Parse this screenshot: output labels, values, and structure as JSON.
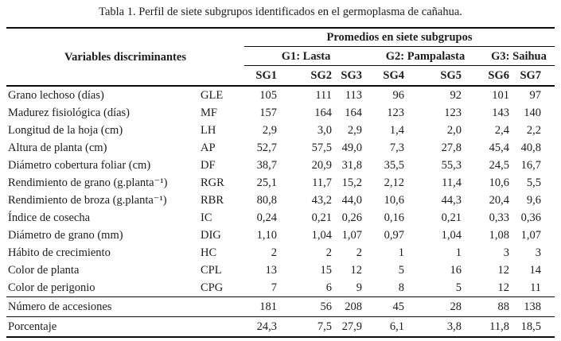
{
  "title": "Tabla 1. Perfil de siete subgrupos identificados en el germoplasma de cañahua.",
  "table": {
    "corner_header": "Variables discriminantes",
    "span_header": "Promedios en siete subgrupos",
    "groups": [
      {
        "label": "G1: Lasta"
      },
      {
        "label": "G2: Pampalasta"
      },
      {
        "label": "G3: Saihua"
      }
    ],
    "subgroups": [
      "SG1",
      "SG2",
      "SG3",
      "SG4",
      "SG5",
      "SG6",
      "SG7"
    ],
    "rows": [
      {
        "label": "Grano lechoso (días)",
        "abbr": "GLE",
        "values": [
          "105",
          "111",
          "113",
          "96",
          "92",
          "101",
          "97"
        ]
      },
      {
        "label": "Madurez fisiológica (días)",
        "abbr": "MF",
        "values": [
          "157",
          "164",
          "164",
          "123",
          "123",
          "143",
          "140"
        ]
      },
      {
        "label": "Longitud de la hoja (cm)",
        "abbr": "LH",
        "values": [
          "2,9",
          "3,0",
          "2,9",
          "1,4",
          "2,0",
          "2,4",
          "2,2"
        ]
      },
      {
        "label": "Altura de planta (cm)",
        "abbr": "AP",
        "values": [
          "52,7",
          "57,5",
          "49,0",
          "7,3",
          "27,8",
          "45,4",
          "40,8"
        ]
      },
      {
        "label": "Diámetro cobertura foliar (cm)",
        "abbr": "DF",
        "values": [
          "38,7",
          "20,9",
          "31,8",
          "35,5",
          "55,3",
          "24,5",
          "16,7"
        ]
      },
      {
        "label": "Rendimiento de grano (g.planta⁻¹)",
        "abbr": "RGR",
        "values": [
          "25,1",
          "11,7",
          "15,2",
          "2,12",
          "11,4",
          "10,6",
          "5,5"
        ]
      },
      {
        "label": "Rendimiento de broza (g.planta⁻¹)",
        "abbr": "RBR",
        "values": [
          "80,8",
          "43,2",
          "44,0",
          "10,6",
          "44,3",
          "20,4",
          "9,6"
        ]
      },
      {
        "label": "Índice de cosecha",
        "abbr": "IC",
        "values": [
          "0,24",
          "0,21",
          "0,26",
          "0,16",
          "0,21",
          "0,33",
          "0,36"
        ]
      },
      {
        "label": "Diámetro de grano (mm)",
        "abbr": "DIG",
        "values": [
          "1,10",
          "1,04",
          "1,07",
          "0,97",
          "1,04",
          "1,08",
          "1,07"
        ]
      },
      {
        "label": "Hábito de crecimiento",
        "abbr": "HC",
        "values": [
          "2",
          "2",
          "2",
          "1",
          "1",
          "3",
          "3"
        ]
      },
      {
        "label": "Color de planta",
        "abbr": "CPL",
        "values": [
          "13",
          "15",
          "12",
          "5",
          "16",
          "12",
          "14"
        ]
      },
      {
        "label": "Color de perigonio",
        "abbr": "CPG",
        "values": [
          "7",
          "6",
          "9",
          "8",
          "5",
          "12",
          "11"
        ]
      }
    ],
    "summary_rows": [
      {
        "label": "Número de accesiones",
        "values": [
          "181",
          "56",
          "208",
          "45",
          "28",
          "88",
          "138"
        ]
      },
      {
        "label": "Porcentaje",
        "values": [
          "24,3",
          "7,5",
          "27,9",
          "6,1",
          "3,8",
          "11,8",
          "18,5"
        ]
      }
    ]
  }
}
